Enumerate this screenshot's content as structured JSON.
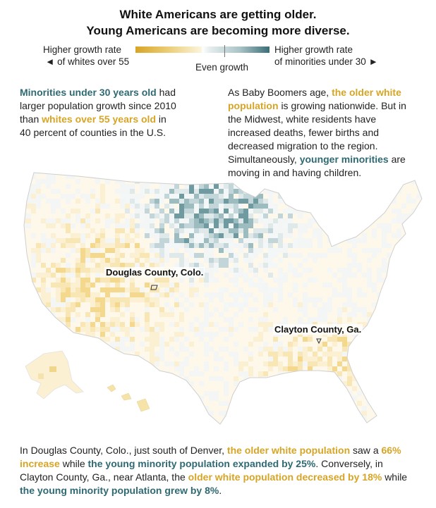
{
  "title": {
    "line1": "White Americans are getting older.",
    "line2": "Young Americans are becoming more diverse."
  },
  "legend": {
    "left_top": "Higher growth rate",
    "left_bottom": "◄ of whites over 55",
    "middle": "Even growth",
    "right_top": "Higher growth rate",
    "right_bottom": "of minorities under 30 ►",
    "colors": {
      "gold": "#d7a526",
      "teal": "#3a6e76",
      "neutral": "#ffffff"
    }
  },
  "intro_left": {
    "highlight1": "Minorities under 30 years old",
    "text1": "had larger population growth since 2010 than",
    "highlight2": "whites over 55 years old",
    "text2": "in 40 percent of counties in the U.S."
  },
  "intro_right": {
    "text1": "As Baby Boomers age,",
    "highlight1": "the older white population",
    "text2": "is growing nationwide. But in the Midwest, white residents have increased deaths, fewer births and decreased migration to the region. Simultaneously,",
    "highlight2": "younger minorities",
    "text3": "are moving in and having children."
  },
  "map": {
    "callouts": {
      "douglas": "Douglas County, Colo.",
      "clayton": "Clayton County, Ga."
    }
  },
  "footer": {
    "p1": "In Douglas County, Colo., just south of Denver,",
    "h1": "the older white population",
    "p2": "saw",
    "p3": "a",
    "h2": "66% increase",
    "p4": "while",
    "h3": "the young minority population expanded by 25%",
    "p5": ".",
    "p6": "Conversely, in Clayton County, Ga., near Atlanta, the",
    "h4": "older white population",
    "h5": "decreased by 18%",
    "p7": "while",
    "h6": "the young minority population grew by 8%",
    "p8": "."
  }
}
